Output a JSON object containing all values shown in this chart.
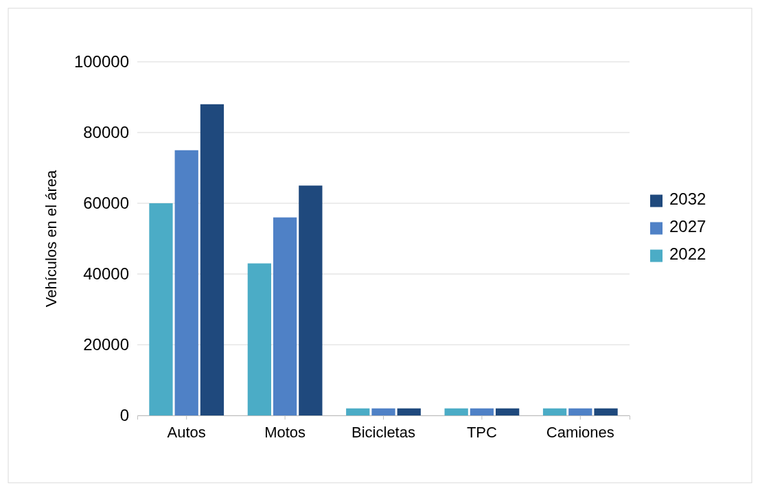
{
  "chart_data": {
    "type": "bar",
    "ylabel": "Vehículos en el área",
    "categories": [
      "Autos",
      "Motos",
      "Bicicletas",
      "TPC",
      "Camiones"
    ],
    "series": [
      {
        "name": "2022",
        "color": "#4bacc6",
        "values": [
          60000,
          43000,
          2000,
          2000,
          2000
        ]
      },
      {
        "name": "2027",
        "color": "#4f81c6",
        "values": [
          75000,
          56000,
          2000,
          2000,
          2000
        ]
      },
      {
        "name": "2032",
        "color": "#1f497d",
        "values": [
          88000,
          65000,
          2000,
          2000,
          2000
        ]
      }
    ],
    "ylim": [
      0,
      100000
    ],
    "yticks": [
      0,
      20000,
      40000,
      60000,
      80000,
      100000
    ],
    "grid": "y",
    "legend": "right"
  }
}
